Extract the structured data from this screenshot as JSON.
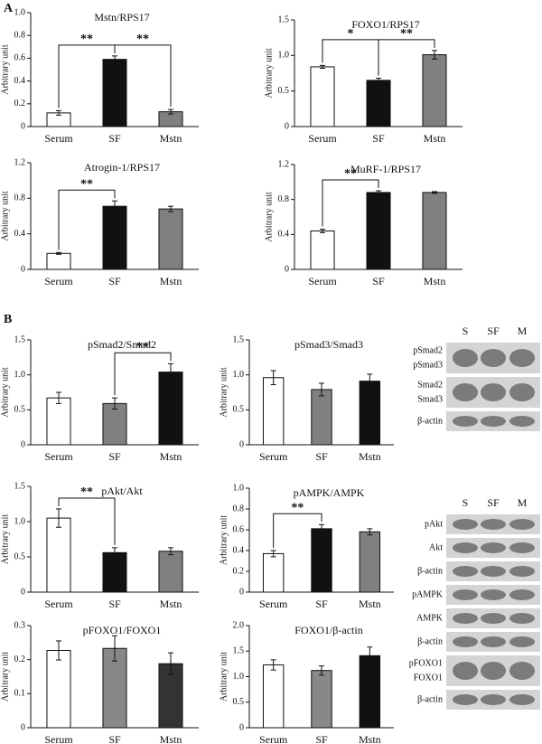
{
  "panel_labels": [
    "A",
    "B"
  ],
  "chart_data": [
    {
      "type": "bar",
      "title": "Mstn/RPS17",
      "y_label": "Arbitrary unit",
      "categories": [
        "Serum",
        "SF",
        "Mstn"
      ],
      "values": [
        0.12,
        0.59,
        0.13
      ],
      "errors": [
        0.02,
        0.03,
        0.02
      ],
      "colors": [
        "#ffffff",
        "#111111",
        "#808080"
      ],
      "ylim": [
        0,
        1
      ],
      "yticks": [
        0,
        0.2,
        0.4,
        0.6,
        0.8,
        {
          "value": 1,
          "label": "1.0"
        }
      ],
      "significance": [
        {
          "from": 0,
          "to": 1,
          "label": "**"
        },
        {
          "from": 1,
          "to": 2,
          "label": "**"
        }
      ]
    },
    {
      "type": "bar",
      "title": "FOXO1/RPS17",
      "y_label": "Arbitrary unit",
      "categories": [
        "Serum",
        "SF",
        "Mstn"
      ],
      "values": [
        0.84,
        0.65,
        1.01
      ],
      "errors": [
        0.02,
        0.03,
        0.06
      ],
      "colors": [
        "#ffffff",
        "#111111",
        "#808080"
      ],
      "ylim": [
        0,
        1.5
      ],
      "yticks": [
        0,
        0.5,
        {
          "value": 1,
          "label": "1.0"
        },
        1.5
      ],
      "significance": [
        {
          "from": 0,
          "to": 1,
          "label": "*"
        },
        {
          "from": 1,
          "to": 2,
          "label": "**"
        }
      ]
    },
    {
      "type": "bar",
      "title": "Atrogin-1/RPS17",
      "y_label": "Arbitrary unit",
      "categories": [
        "Serum",
        "SF",
        "Mstn"
      ],
      "values": [
        0.18,
        0.71,
        0.68
      ],
      "errors": [
        0.01,
        0.06,
        0.03
      ],
      "colors": [
        "#ffffff",
        "#111111",
        "#808080"
      ],
      "ylim": [
        0,
        1.2
      ],
      "yticks": [
        0,
        0.4,
        0.8,
        1.2
      ],
      "significance": [
        {
          "from": 0,
          "to": 1,
          "label": "**"
        }
      ]
    },
    {
      "type": "bar",
      "title": "MuRF-1/RPS17",
      "y_label": "Arbitrary unit",
      "categories": [
        "Serum",
        "SF",
        "Mstn"
      ],
      "values": [
        0.44,
        0.88,
        0.88
      ],
      "errors": [
        0.02,
        0.02,
        0.01
      ],
      "colors": [
        "#ffffff",
        "#111111",
        "#808080"
      ],
      "ylim": [
        0,
        1.2
      ],
      "yticks": [
        0,
        0.4,
        0.8,
        1.2
      ],
      "significance": [
        {
          "from": 0,
          "to": 1,
          "label": "**"
        }
      ]
    },
    {
      "type": "bar",
      "title": "pSmad2/Smad2",
      "y_label": "Arbitrary unit",
      "categories": [
        "Serum",
        "SF",
        "Mstn"
      ],
      "values": [
        0.67,
        0.59,
        1.04
      ],
      "errors": [
        0.08,
        0.08,
        0.12
      ],
      "colors": [
        "#ffffff",
        "#808080",
        "#111111"
      ],
      "ylim": [
        0,
        1.5
      ],
      "yticks": [
        0,
        0.5,
        {
          "value": 1,
          "label": "1.0"
        },
        1.5
      ],
      "significance": [
        {
          "from": 1,
          "to": 2,
          "label": "**"
        }
      ]
    },
    {
      "type": "bar",
      "title": "pSmad3/Smad3",
      "y_label": "Arbitrary unit",
      "categories": [
        "Serum",
        "SF",
        "Mstn"
      ],
      "values": [
        0.96,
        0.79,
        0.91
      ],
      "errors": [
        0.1,
        0.09,
        0.1
      ],
      "colors": [
        "#ffffff",
        "#808080",
        "#111111"
      ],
      "ylim": [
        0,
        1.5
      ],
      "yticks": [
        0,
        0.5,
        {
          "value": 1,
          "label": "1.0"
        },
        1.5
      ],
      "significance": []
    },
    {
      "type": "bar",
      "title": "pAkt/Akt",
      "y_label": "Arbitrary unit",
      "categories": [
        "Serum",
        "SF",
        "Mstn"
      ],
      "values": [
        1.05,
        0.56,
        0.58
      ],
      "errors": [
        0.13,
        0.07,
        0.05
      ],
      "colors": [
        "#ffffff",
        "#111111",
        "#808080"
      ],
      "ylim": [
        0,
        1.5
      ],
      "yticks": [
        0,
        0.5,
        {
          "value": 1,
          "label": "1.0"
        },
        1.5
      ],
      "significance": [
        {
          "from": 0,
          "to": 1,
          "label": "**"
        }
      ]
    },
    {
      "type": "bar",
      "title": "pAMPK/AMPK",
      "y_label": "Arbitrary unit",
      "categories": [
        "Serum",
        "SF",
        "Mstn"
      ],
      "values": [
        0.37,
        0.61,
        0.58
      ],
      "errors": [
        0.03,
        0.04,
        0.03
      ],
      "colors": [
        "#ffffff",
        "#111111",
        "#808080"
      ],
      "ylim": [
        0,
        1
      ],
      "yticks": [
        0,
        0.2,
        0.4,
        0.6,
        0.8,
        {
          "value": 1,
          "label": "1.0"
        }
      ],
      "significance": [
        {
          "from": 0,
          "to": 1,
          "label": "**"
        }
      ]
    },
    {
      "type": "bar",
      "title": "pFOXO1/FOXO1",
      "y_label": "Arbitrary unit",
      "categories": [
        "Serum",
        "SF",
        "Mstn"
      ],
      "values": [
        0.227,
        0.233,
        0.188
      ],
      "errors": [
        0.028,
        0.037,
        0.032
      ],
      "colors": [
        "#ffffff",
        "#888888",
        "#333333"
      ],
      "ylim": [
        0,
        0.3
      ],
      "yticks": [
        0,
        0.1,
        0.2,
        0.3
      ],
      "significance": []
    },
    {
      "type": "bar",
      "title": "FOXO1/β-actin",
      "y_label": "Arbitrary unit",
      "categories": [
        "Serum",
        "SF",
        "Mstn"
      ],
      "values": [
        1.23,
        1.12,
        1.41
      ],
      "errors": [
        0.1,
        0.09,
        0.17
      ],
      "colors": [
        "#ffffff",
        "#888888",
        "#111111"
      ],
      "ylim": [
        0,
        2
      ],
      "yticks": [
        0,
        0.5,
        {
          "value": 1,
          "label": "1.0"
        },
        1.5,
        {
          "value": 2,
          "label": "2.0"
        }
      ],
      "significance": []
    }
  ],
  "blots": [
    {
      "lanes": [
        "S",
        "SF",
        "M"
      ],
      "rows": [
        [
          "pSmad2",
          "pSmad3"
        ],
        [
          "Smad2",
          "Smad3"
        ],
        [
          "β-actin"
        ]
      ]
    },
    {
      "lanes": [
        "S",
        "SF",
        "M"
      ],
      "rows": [
        [
          "pAkt"
        ],
        [
          "Akt"
        ],
        [
          "β-actin"
        ],
        [
          "pAMPK"
        ],
        [
          "AMPK"
        ],
        [
          "β-actin"
        ],
        [
          "pFOXO1",
          "FOXO1"
        ],
        [
          "β-actin"
        ]
      ]
    }
  ]
}
